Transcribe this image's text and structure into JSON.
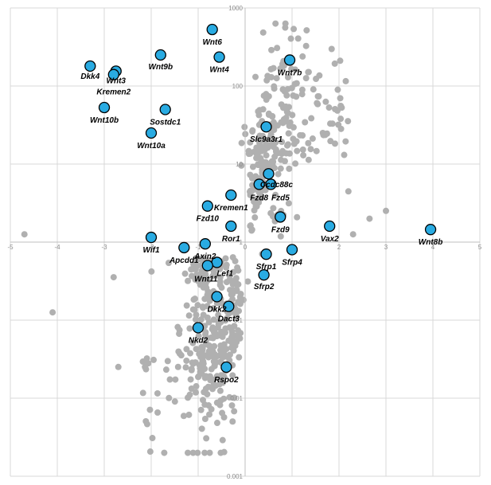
{
  "chart_data": {
    "type": "scatter",
    "title": "",
    "xlabel": "",
    "ylabel": "",
    "xlim": [
      -5,
      5
    ],
    "ylim": [
      0.001,
      1000
    ],
    "yscale": "log",
    "grid": true,
    "colors": {
      "background": "#b0b0b0",
      "highlight": "#29abe2",
      "highlight_edge": "#000000",
      "grid": "#d9d9d9"
    },
    "x_ticks": [
      "-5",
      "-4",
      "-3",
      "-2",
      "-1",
      "0",
      "1",
      "2",
      "3",
      "4",
      "5"
    ],
    "y_ticks": [
      "1000",
      "100",
      "10",
      "1",
      "0.1",
      "0.01",
      "0.001"
    ],
    "highlighted_genes": [
      {
        "name": "Wnt6",
        "x": -0.7,
        "y": 530
      },
      {
        "name": "Wnt4",
        "x": -0.55,
        "y": 235
      },
      {
        "name": "Wnt9b",
        "x": -1.8,
        "y": 250
      },
      {
        "name": "Dkk4",
        "x": -3.3,
        "y": 180
      },
      {
        "name": "Wnt3",
        "x": -2.75,
        "y": 155
      },
      {
        "name": "Kremen2",
        "x": -2.8,
        "y": 140
      },
      {
        "name": "Wnt7b",
        "x": 0.95,
        "y": 215
      },
      {
        "name": "Wnt10b",
        "x": -3.0,
        "y": 53
      },
      {
        "name": "Sostdc1",
        "x": -1.7,
        "y": 50
      },
      {
        "name": "Wnt10a",
        "x": -2.0,
        "y": 25
      },
      {
        "name": "Slc9a3r1",
        "x": 0.45,
        "y": 30
      },
      {
        "name": "Ccdc88c",
        "x": 0.5,
        "y": 7.5
      },
      {
        "name": "Fzd8",
        "x": 0.3,
        "y": 5.5
      },
      {
        "name": "Fzd5",
        "x": 0.55,
        "y": 5.5
      },
      {
        "name": "Kremen1",
        "x": -0.3,
        "y": 4.0
      },
      {
        "name": "Fzd10",
        "x": -0.8,
        "y": 2.9
      },
      {
        "name": "Fzd9",
        "x": 0.75,
        "y": 2.1
      },
      {
        "name": "Ror1",
        "x": -0.3,
        "y": 1.6
      },
      {
        "name": "Vax2",
        "x": 1.8,
        "y": 1.6
      },
      {
        "name": "Wnt8b",
        "x": 3.95,
        "y": 1.45
      },
      {
        "name": "Wif1",
        "x": -2.0,
        "y": 1.15
      },
      {
        "name": "Axin2",
        "x": -0.85,
        "y": 0.95
      },
      {
        "name": "Apcdd1",
        "x": -1.3,
        "y": 0.85
      },
      {
        "name": "Sfrp4",
        "x": 1.0,
        "y": 0.8
      },
      {
        "name": "Sfrp1",
        "x": 0.45,
        "y": 0.7
      },
      {
        "name": "Lef1",
        "x": -0.6,
        "y": 0.55
      },
      {
        "name": "Wnt11",
        "x": -0.8,
        "y": 0.5
      },
      {
        "name": "Sfrp2",
        "x": 0.4,
        "y": 0.38
      },
      {
        "name": "Dkk2",
        "x": -0.6,
        "y": 0.2
      },
      {
        "name": "Dact3",
        "x": -0.35,
        "y": 0.15
      },
      {
        "name": "Nkd2",
        "x": -1.0,
        "y": 0.08
      },
      {
        "name": "Rspo2",
        "x": -0.4,
        "y": 0.025
      }
    ]
  }
}
